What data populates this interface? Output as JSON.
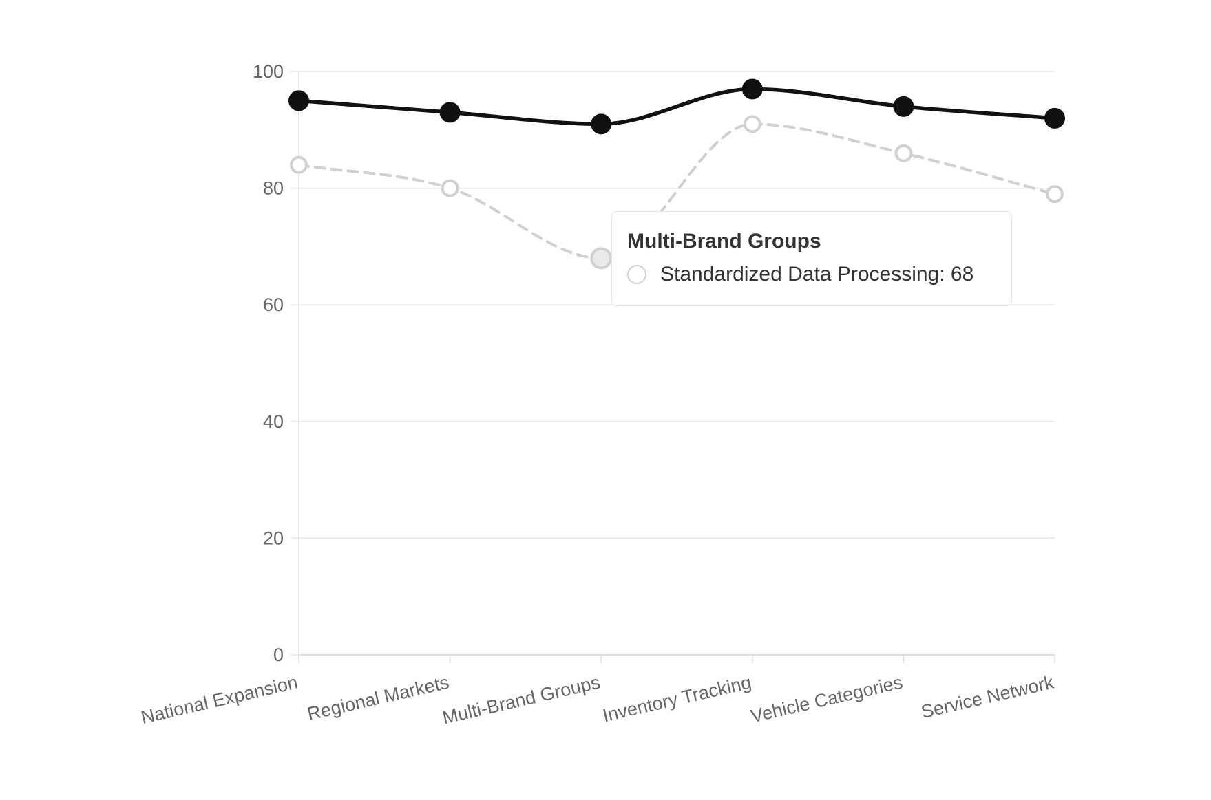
{
  "chart_data": {
    "type": "line",
    "categories": [
      "National Expansion",
      "Regional Markets",
      "Multi-Brand Groups",
      "Inventory Tracking",
      "Vehicle Categories",
      "Service Network"
    ],
    "series": [
      {
        "values": [
          95,
          93,
          91,
          97,
          94,
          92
        ],
        "color": "#111111",
        "style": "solid",
        "marker": "filled-circle"
      },
      {
        "name": "Standardized Data Processing",
        "values": [
          84,
          80,
          68,
          91,
          86,
          79
        ],
        "color": "#d0d0d0",
        "style": "dashed",
        "marker": "hollow-circle"
      }
    ],
    "yticks": [
      0,
      20,
      40,
      60,
      80,
      100
    ],
    "ylim": [
      0,
      100
    ],
    "grid": true,
    "legend": "none",
    "tooltip": {
      "title": "Multi-Brand Groups",
      "label": "Standardized Data Processing: 68",
      "active_series": 1,
      "active_index": 2
    }
  }
}
